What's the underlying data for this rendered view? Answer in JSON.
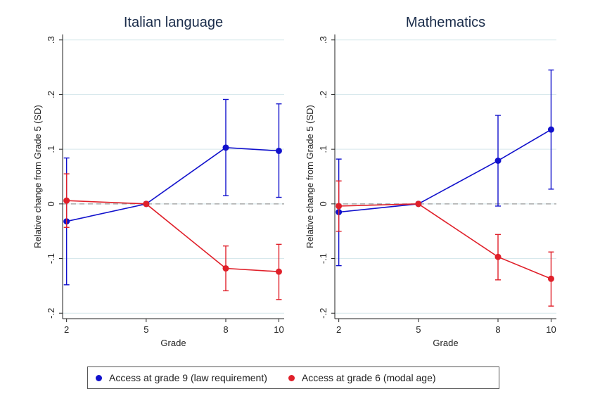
{
  "chart_data": [
    {
      "type": "line",
      "title": "Italian language",
      "xlabel": "Grade",
      "ylabel": "Relative change from Grade 5 (SD)",
      "x": [
        2,
        5,
        8,
        10
      ],
      "xticks": [
        "2",
        "5",
        "8",
        "10"
      ],
      "xlim": [
        1.85,
        10.2
      ],
      "ylim": [
        -0.21,
        0.31
      ],
      "yticks": [
        {
          "value": -0.2,
          "label": "-.2"
        },
        {
          "value": -0.1,
          "label": "-.1"
        },
        {
          "value": 0,
          "label": "0"
        },
        {
          "value": 0.1,
          "label": ".1"
        },
        {
          "value": 0.2,
          "label": ".2"
        },
        {
          "value": 0.3,
          "label": ".3"
        }
      ],
      "grid": true,
      "reference_line": 0,
      "series": [
        {
          "name": "Access at grade 9 (law requirement)",
          "color": "#1111cc",
          "values": [
            -0.032,
            0,
            0.103,
            0.097
          ],
          "ci_low": [
            -0.148,
            null,
            0.015,
            0.012
          ],
          "ci_high": [
            0.084,
            null,
            0.191,
            0.183
          ]
        },
        {
          "name": "Access at grade 6 (modal age)",
          "color": "#e0202a",
          "values": [
            0.006,
            0,
            -0.118,
            -0.124
          ],
          "ci_low": [
            -0.043,
            null,
            -0.159,
            -0.175
          ],
          "ci_high": [
            0.055,
            null,
            -0.077,
            -0.074
          ]
        }
      ]
    },
    {
      "type": "line",
      "title": "Mathematics",
      "xlabel": "Grade",
      "ylabel": "Relative change from Grade 5 (SD)",
      "x": [
        2,
        5,
        8,
        10
      ],
      "xticks": [
        "2",
        "5",
        "8",
        "10"
      ],
      "xlim": [
        1.85,
        10.2
      ],
      "ylim": [
        -0.21,
        0.31
      ],
      "yticks": [
        {
          "value": -0.2,
          "label": "-.2"
        },
        {
          "value": -0.1,
          "label": "-.1"
        },
        {
          "value": 0,
          "label": "0"
        },
        {
          "value": 0.1,
          "label": ".1"
        },
        {
          "value": 0.2,
          "label": ".2"
        },
        {
          "value": 0.3,
          "label": ".3"
        }
      ],
      "grid": true,
      "reference_line": 0,
      "series": [
        {
          "name": "Access at grade 9 (law requirement)",
          "color": "#1111cc",
          "values": [
            -0.015,
            0,
            0.079,
            0.136
          ],
          "ci_low": [
            -0.113,
            null,
            -0.004,
            0.027
          ],
          "ci_high": [
            0.082,
            null,
            0.162,
            0.245
          ]
        },
        {
          "name": "Access at grade 6 (modal age)",
          "color": "#e0202a",
          "values": [
            -0.004,
            0,
            -0.097,
            -0.137
          ],
          "ci_low": [
            -0.05,
            null,
            -0.139,
            -0.187
          ],
          "ci_high": [
            0.042,
            null,
            -0.056,
            -0.088
          ]
        }
      ]
    }
  ],
  "legend": {
    "placement": "bottom",
    "items": [
      {
        "label": "Access at grade 9 (law requirement)",
        "color": "#1111cc"
      },
      {
        "label": "Access at grade 6 (modal age)",
        "color": "#e0202a"
      }
    ]
  }
}
